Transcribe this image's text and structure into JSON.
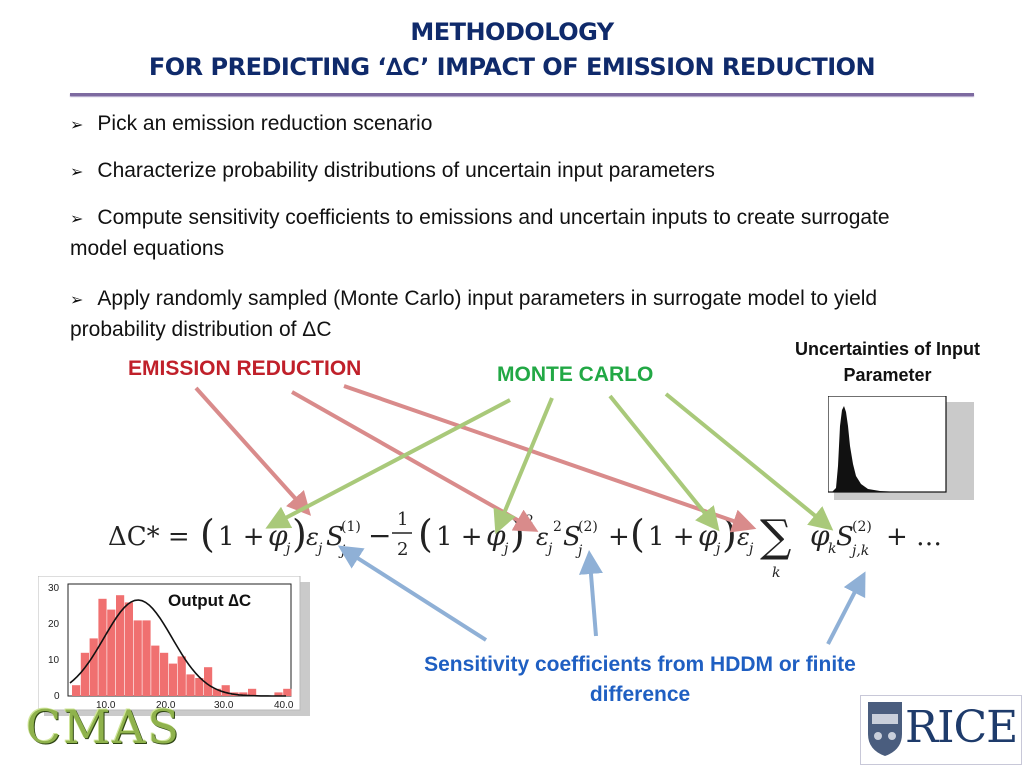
{
  "header": {
    "title_line1": "METHODOLOGY",
    "title_line2": "FOR PREDICTING ‘∆C’ IMPACT OF EMISSION REDUCTION"
  },
  "bullets": [
    {
      "text": "Pick an emission reduction scenario"
    },
    {
      "text": "Characterize probability distributions of uncertain input parameters"
    },
    {
      "text": "Compute sensitivity coefficients to emissions and uncertain inputs to create surrogate model equations"
    },
    {
      "text": "Apply randomly sampled (Monte Carlo) input parameters in surrogate model to yield probability distribution of ΔC"
    }
  ],
  "labels": {
    "emission_reduction": "EMISSION REDUCTION",
    "monte_carlo": "MONTE CARLO",
    "uncertainties": "Uncertainties of Input Parameter",
    "sensitivity": "Sensitivity coefficients from HDDM or finite difference",
    "output": "Output  ∆C"
  },
  "output_histogram": {
    "y_ticks": [
      "30",
      "20",
      "10",
      "0"
    ],
    "x_ticks": [
      "10.0",
      "20.0",
      "30.0",
      "40.0"
    ],
    "bar_color": "#f07070",
    "curve_color": "#111111"
  },
  "logos": {
    "cmas": "CMAS",
    "rice": "RICE"
  },
  "colors": {
    "title": "#0f2a6b",
    "emission_arrow": "#d98b8b",
    "monte_arrow": "#a9c97a",
    "sensitivity_arrow": "#8fb0d6"
  }
}
